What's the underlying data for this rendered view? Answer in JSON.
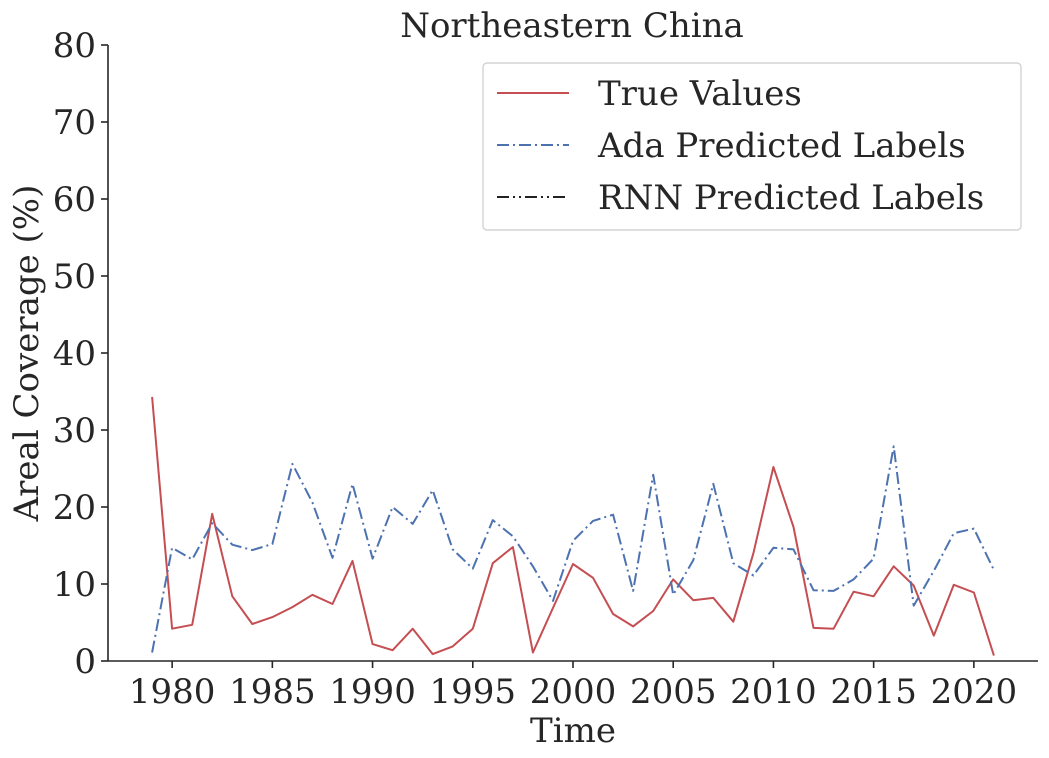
{
  "chart_data": {
    "type": "line",
    "title": "Northeastern China",
    "xlabel": "Time",
    "ylabel": "Areal Coverage (%)",
    "xlim": [
      1976.8,
      2023.2
    ],
    "ylim": [
      0,
      80
    ],
    "xticks": [
      1980,
      1985,
      1990,
      1995,
      2000,
      2005,
      2010,
      2015,
      2020
    ],
    "yticks": [
      0,
      10,
      20,
      30,
      40,
      50,
      60,
      70,
      80
    ],
    "grid": false,
    "legend_position": "upper right",
    "x": [
      1979,
      1980,
      1981,
      1982,
      1983,
      1984,
      1985,
      1986,
      1987,
      1988,
      1989,
      1990,
      1991,
      1992,
      1993,
      1994,
      1995,
      1996,
      1997,
      1998,
      1999,
      2000,
      2001,
      2002,
      2003,
      2004,
      2005,
      2006,
      2007,
      2008,
      2009,
      2010,
      2011,
      2012,
      2013,
      2014,
      2015,
      2016,
      2017,
      2018,
      2019,
      2020,
      2021
    ],
    "series": [
      {
        "name": "True Values",
        "color": "#c44e52",
        "dash": "solid",
        "values": [
          34.3,
          4.2,
          4.7,
          19.1,
          8.4,
          4.8,
          5.7,
          7.0,
          8.6,
          7.4,
          13.0,
          2.2,
          1.4,
          4.2,
          0.9,
          1.9,
          4.2,
          12.7,
          14.8,
          1.1,
          6.9,
          12.6,
          10.8,
          6.1,
          4.5,
          6.5,
          10.6,
          7.9,
          8.2,
          5.1,
          14.0,
          25.2,
          17.4,
          4.3,
          4.2,
          9.0,
          8.4,
          12.3,
          9.8,
          3.3,
          9.9,
          8.9,
          0.7
        ]
      },
      {
        "name": "Ada Predicted Labels",
        "color": "#4c72b0",
        "dash": "dashdot",
        "values": [
          1.1,
          14.7,
          13.2,
          17.9,
          15.1,
          14.4,
          15.2,
          25.6,
          20.6,
          13.4,
          23.0,
          13.3,
          20.0,
          17.8,
          22.2,
          14.5,
          12.0,
          18.3,
          16.2,
          12.3,
          7.8,
          15.6,
          18.2,
          19.0,
          9.1,
          24.2,
          8.6,
          13.1,
          23.0,
          12.7,
          11.1,
          14.7,
          14.5,
          9.2,
          9.1,
          10.6,
          13.3,
          27.9,
          7.2,
          11.7,
          16.6,
          17.2,
          11.8
        ]
      },
      {
        "name": "RNN Predicted Labels",
        "color": "#222222",
        "dash": "dashdotdot",
        "values": [
          null,
          null,
          null,
          null,
          null,
          null,
          null,
          null,
          null,
          null,
          null,
          null,
          null,
          null,
          null,
          null,
          null,
          null,
          null,
          null,
          null,
          null,
          null,
          null,
          null,
          null,
          null,
          null,
          null,
          null,
          null,
          null,
          null,
          null,
          null,
          null,
          null,
          null,
          null,
          null,
          null,
          null,
          null
        ]
      }
    ]
  }
}
